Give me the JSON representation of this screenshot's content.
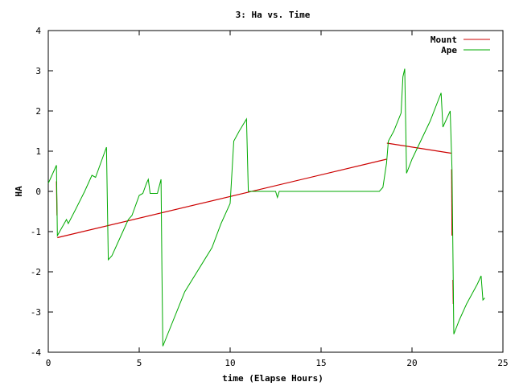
{
  "chart_data": {
    "type": "line",
    "title": "3: Ha vs. Time",
    "xlabel": "time (Elapse Hours)",
    "ylabel": "HA",
    "xlim": [
      0,
      25
    ],
    "ylim": [
      -4,
      4
    ],
    "xticks": [
      0,
      5,
      10,
      15,
      20,
      25
    ],
    "yticks": [
      -4,
      -3,
      -2,
      -1,
      0,
      1,
      2,
      3,
      4
    ],
    "grid": false,
    "legend_position": "top-right",
    "series": [
      {
        "name": "Mount",
        "color": "#cc0000",
        "points": [
          [
            0.45,
            0.25
          ],
          [
            0.48,
            -0.6
          ],
          [
            0.5,
            -1.15
          ],
          [
            18.6,
            0.8
          ],
          [
            18.62,
            1.2
          ],
          [
            22.15,
            0.95
          ],
          [
            22.18,
            0.55
          ],
          [
            22.2,
            -1.1
          ],
          [
            22.25,
            -2.2
          ],
          [
            22.27,
            -2.8
          ],
          [
            22.3,
            -3.6
          ]
        ]
      },
      {
        "name": "Ape",
        "color": "#00aa00",
        "points": [
          [
            0.0,
            0.2
          ],
          [
            0.4,
            0.6
          ],
          [
            0.45,
            0.65
          ],
          [
            0.5,
            -1.1
          ],
          [
            1.0,
            -0.7
          ],
          [
            1.1,
            -0.8
          ],
          [
            1.5,
            -0.45
          ],
          [
            2.0,
            0.0
          ],
          [
            2.4,
            0.4
          ],
          [
            2.6,
            0.35
          ],
          [
            3.2,
            1.1
          ],
          [
            3.3,
            -1.7
          ],
          [
            3.5,
            -1.6
          ],
          [
            4.0,
            -1.1
          ],
          [
            4.2,
            -0.9
          ],
          [
            4.4,
            -0.7
          ],
          [
            4.6,
            -0.6
          ],
          [
            5.0,
            -0.1
          ],
          [
            5.2,
            -0.05
          ],
          [
            5.4,
            0.2
          ],
          [
            5.5,
            0.3
          ],
          [
            5.6,
            -0.05
          ],
          [
            6.0,
            -0.05
          ],
          [
            6.2,
            0.3
          ],
          [
            6.25,
            -2.0
          ],
          [
            6.3,
            -3.85
          ],
          [
            7.5,
            -2.5
          ],
          [
            9.0,
            -1.4
          ],
          [
            9.5,
            -0.8
          ],
          [
            10.0,
            -0.3
          ],
          [
            10.2,
            1.25
          ],
          [
            10.5,
            1.5
          ],
          [
            10.9,
            1.8
          ],
          [
            11.0,
            0.0
          ],
          [
            12.5,
            0.0
          ],
          [
            12.6,
            -0.15
          ],
          [
            12.7,
            0.0
          ],
          [
            18.2,
            0.0
          ],
          [
            18.4,
            0.1
          ],
          [
            18.6,
            0.7
          ],
          [
            18.7,
            1.25
          ],
          [
            19.0,
            1.5
          ],
          [
            19.4,
            1.95
          ],
          [
            19.5,
            2.85
          ],
          [
            19.6,
            3.05
          ],
          [
            19.7,
            0.45
          ],
          [
            20.0,
            0.8
          ],
          [
            21.0,
            1.75
          ],
          [
            21.6,
            2.45
          ],
          [
            21.7,
            1.6
          ],
          [
            22.1,
            2.0
          ],
          [
            22.2,
            0.55
          ],
          [
            22.3,
            -3.55
          ],
          [
            22.6,
            -3.2
          ],
          [
            23.0,
            -2.8
          ],
          [
            23.6,
            -2.3
          ],
          [
            23.8,
            -2.1
          ],
          [
            23.9,
            -2.7
          ],
          [
            24.0,
            -2.65
          ]
        ]
      }
    ]
  }
}
